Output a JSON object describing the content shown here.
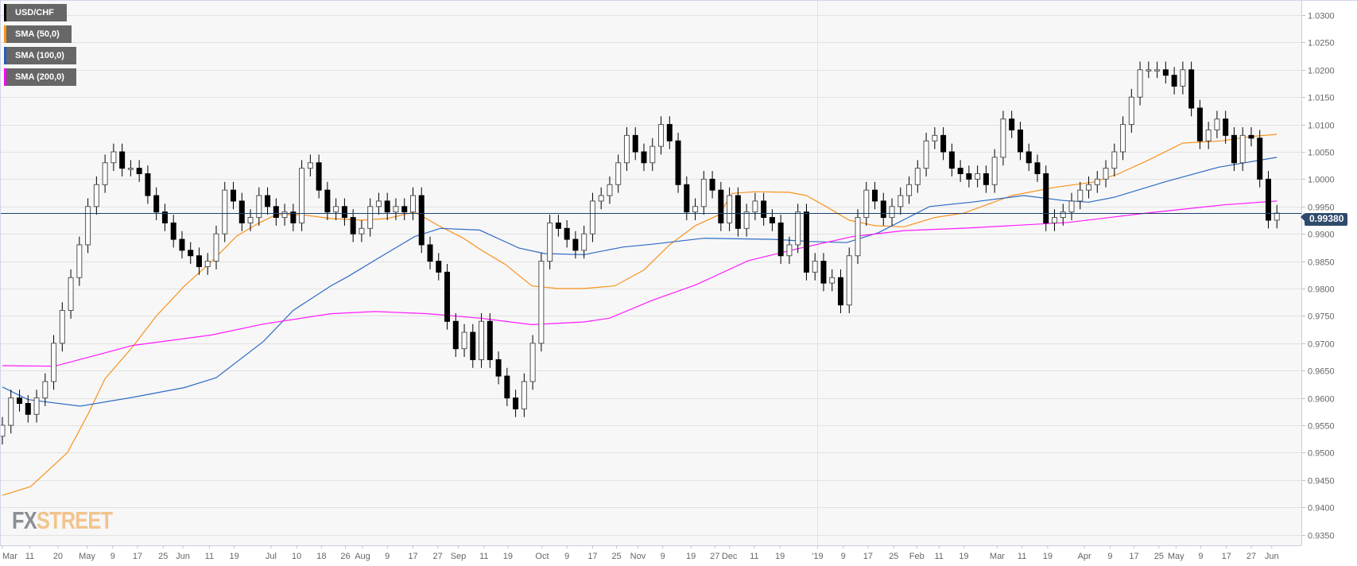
{
  "chart_data": {
    "type": "candlestick",
    "title": "USD/CHF",
    "symbol": "USD/CHF",
    "current_price": "0.99380",
    "current_price_value": 0.9938,
    "ylim": [
      0.9325,
      1.0325
    ],
    "y_ticks": [
      "1.0300",
      "1.0250",
      "1.0200",
      "1.0150",
      "1.0100",
      "1.0050",
      "1.0000",
      "0.9950",
      "0.9900",
      "0.9850",
      "0.9800",
      "0.9750",
      "0.9700",
      "0.9650",
      "0.9600",
      "0.9550",
      "0.9500",
      "0.9450",
      "0.9400",
      "0.9350"
    ],
    "x_ticks": [
      {
        "label": "Mar",
        "index": 0
      },
      {
        "label": "11",
        "index": 3.2
      },
      {
        "label": "20",
        "index": 6.5
      },
      {
        "label": "May",
        "index": 9.9
      },
      {
        "label": "9",
        "index": 12.9
      },
      {
        "label": "17",
        "index": 15.8
      },
      {
        "label": "25",
        "index": 18.8
      },
      {
        "label": "Jun",
        "index": 21.1
      },
      {
        "label": "11",
        "index": 24.2
      },
      {
        "label": "19",
        "index": 27.1
      },
      {
        "label": "Jul",
        "index": 31.4
      },
      {
        "label": "10",
        "index": 34.4
      },
      {
        "label": "18",
        "index": 37.3
      },
      {
        "label": "26",
        "index": 40.1
      },
      {
        "label": "Aug",
        "index": 42.1
      },
      {
        "label": "9",
        "index": 45
      },
      {
        "label": "17",
        "index": 48
      },
      {
        "label": "27",
        "index": 50.9
      },
      {
        "label": "Sep",
        "index": 53.3
      },
      {
        "label": "11",
        "index": 56.3
      },
      {
        "label": "19",
        "index": 59.1
      },
      {
        "label": "Oct",
        "index": 63.1
      },
      {
        "label": "9",
        "index": 66
      },
      {
        "label": "17",
        "index": 69
      },
      {
        "label": "25",
        "index": 71.8
      },
      {
        "label": "Nov",
        "index": 74.3
      },
      {
        "label": "9",
        "index": 77.2
      },
      {
        "label": "19",
        "index": 80.5
      },
      {
        "label": "27",
        "index": 83.3
      },
      {
        "label": "Dec",
        "index": 85
      },
      {
        "label": "11",
        "index": 87.9
      },
      {
        "label": "19",
        "index": 90.9
      },
      {
        "label": "'19",
        "index": 95.3
      },
      {
        "label": "9",
        "index": 98.3
      },
      {
        "label": "17",
        "index": 101.2
      },
      {
        "label": "25",
        "index": 104.2
      },
      {
        "label": "Feb",
        "index": 106.9
      },
      {
        "label": "11",
        "index": 109.5
      },
      {
        "label": "19",
        "index": 112.4
      },
      {
        "label": "Mar",
        "index": 116.3
      },
      {
        "label": "11",
        "index": 119.2
      },
      {
        "label": "19",
        "index": 122.2
      },
      {
        "label": "Apr",
        "index": 126.5
      },
      {
        "label": "9",
        "index": 129.5
      },
      {
        "label": "17",
        "index": 132.3
      },
      {
        "label": "25",
        "index": 135.2
      },
      {
        "label": "May",
        "index": 137.2
      },
      {
        "label": "9",
        "index": 140.1
      },
      {
        "label": "17",
        "index": 143.1
      },
      {
        "label": "27",
        "index": 146
      },
      {
        "label": "Jun",
        "index": 148.4
      }
    ],
    "year_divider_index": 95.3,
    "first_open": 0.953,
    "wick": 0.0015,
    "closes": [
      0.955,
      0.96,
      0.959,
      0.957,
      0.96,
      0.963,
      0.97,
      0.976,
      0.982,
      0.988,
      0.995,
      0.999,
      1.003,
      1.005,
      1.002,
      1.002,
      1.001,
      0.997,
      0.994,
      0.992,
      0.989,
      0.987,
      0.986,
      0.984,
      0.985,
      0.99,
      0.998,
      0.996,
      0.992,
      0.993,
      0.997,
      0.995,
      0.993,
      0.994,
      0.992,
      1.002,
      1.003,
      0.998,
      0.994,
      0.995,
      0.993,
      0.99,
      0.991,
      0.995,
      0.996,
      0.994,
      0.995,
      0.994,
      0.997,
      0.988,
      0.985,
      0.983,
      0.974,
      0.969,
      0.972,
      0.967,
      0.974,
      0.967,
      0.964,
      0.96,
      0.958,
      0.963,
      0.97,
      0.985,
      0.992,
      0.991,
      0.989,
      0.987,
      0.99,
      0.996,
      0.997,
      0.999,
      1.003,
      1.008,
      1.005,
      1.003,
      1.006,
      1.01,
      1.007,
      0.999,
      0.994,
      0.995,
      1.0,
      0.998,
      0.992,
      0.997,
      0.991,
      0.994,
      0.996,
      0.993,
      0.992,
      0.986,
      0.988,
      0.994,
      0.983,
      0.985,
      0.981,
      0.982,
      0.977,
      0.986,
      0.993,
      0.998,
      0.996,
      0.993,
      0.995,
      0.997,
      0.999,
      1.002,
      1.007,
      1.008,
      1.005,
      1.002,
      1.001,
      1.0,
      1.001,
      0.999,
      1.004,
      1.011,
      1.009,
      1.005,
      1.003,
      1.001,
      0.992,
      0.993,
      0.994,
      0.996,
      0.998,
      0.999,
      1.0,
      1.002,
      1.005,
      1.01,
      1.015,
      1.02,
      1.02,
      1.02,
      1.019,
      1.017,
      1.02,
      1.013,
      1.007,
      1.009,
      1.011,
      1.008,
      1.003,
      1.008,
      1.0075,
      1.0,
      0.9925,
      0.9938
    ],
    "series": [
      {
        "name": "SMA (50,0)",
        "color": "#f7931e",
        "points": [
          [
            0,
            0.9422
          ],
          [
            3.3,
            0.9438
          ],
          [
            7.6,
            0.95
          ],
          [
            10,
            0.957
          ],
          [
            12,
            0.9635
          ],
          [
            15.2,
            0.9693
          ],
          [
            18,
            0.975
          ],
          [
            21.3,
            0.9805
          ],
          [
            24.5,
            0.985
          ],
          [
            27.4,
            0.9896
          ],
          [
            30,
            0.992
          ],
          [
            32,
            0.9935
          ],
          [
            35,
            0.9935
          ],
          [
            38.4,
            0.9928
          ],
          [
            42,
            0.9925
          ],
          [
            45,
            0.9928
          ],
          [
            48.2,
            0.994
          ],
          [
            51,
            0.9915
          ],
          [
            53.9,
            0.9892
          ],
          [
            56,
            0.987
          ],
          [
            58.8,
            0.9844
          ],
          [
            61.9,
            0.9805
          ],
          [
            65,
            0.98
          ],
          [
            67.9,
            0.98
          ],
          [
            71.6,
            0.9805
          ],
          [
            75,
            0.9834
          ],
          [
            78,
            0.988
          ],
          [
            81,
            0.9915
          ],
          [
            83.8,
            0.9935
          ],
          [
            85.3,
            0.9974
          ],
          [
            88,
            0.9977
          ],
          [
            92,
            0.9976
          ],
          [
            94,
            0.997
          ],
          [
            96.3,
            0.995
          ],
          [
            99,
            0.9925
          ],
          [
            102,
            0.9915
          ],
          [
            105.4,
            0.9913
          ],
          [
            109,
            0.993
          ],
          [
            112.4,
            0.9938
          ],
          [
            118,
            0.997
          ],
          [
            123,
            0.9985
          ],
          [
            127.7,
            0.9995
          ],
          [
            130.5,
            1.001
          ],
          [
            134,
            1.0035
          ],
          [
            138,
            1.0066
          ],
          [
            142.6,
            1.007
          ],
          [
            146,
            1.0078
          ],
          [
            149,
            1.0082
          ]
        ]
      },
      {
        "name": "SMA (100,0)",
        "color": "#2d6bc4",
        "points": [
          [
            0,
            0.962
          ],
          [
            3,
            0.9597
          ],
          [
            9.1,
            0.9585
          ],
          [
            15.2,
            0.9601
          ],
          [
            21.3,
            0.9619
          ],
          [
            25,
            0.9637
          ],
          [
            30.5,
            0.9703
          ],
          [
            34,
            0.976
          ],
          [
            38.4,
            0.9805
          ],
          [
            40.5,
            0.9823
          ],
          [
            44.2,
            0.9858
          ],
          [
            48.2,
            0.9895
          ],
          [
            51.2,
            0.991
          ],
          [
            55.8,
            0.9907
          ],
          [
            60.4,
            0.9874
          ],
          [
            63.4,
            0.9864
          ],
          [
            68,
            0.9862
          ],
          [
            72.6,
            0.9876
          ],
          [
            75.9,
            0.9881
          ],
          [
            82,
            0.9892
          ],
          [
            90.2,
            0.989
          ],
          [
            94.5,
            0.9886
          ],
          [
            98.7,
            0.9884
          ],
          [
            102.4,
            0.9902
          ],
          [
            108.4,
            0.995
          ],
          [
            113.3,
            0.9958
          ],
          [
            119.4,
            0.997
          ],
          [
            124,
            0.9961
          ],
          [
            127,
            0.9958
          ],
          [
            130,
            0.9967
          ],
          [
            136.1,
            0.9996
          ],
          [
            142.2,
            1.0022
          ],
          [
            149,
            1.004
          ]
        ]
      },
      {
        "name": "SMA (200,0)",
        "color": "#ff1aff",
        "points": [
          [
            0,
            0.9659
          ],
          [
            6.1,
            0.9658
          ],
          [
            10.7,
            0.9677
          ],
          [
            15.2,
            0.9696
          ],
          [
            24.4,
            0.9715
          ],
          [
            30.5,
            0.9735
          ],
          [
            38.4,
            0.9754
          ],
          [
            43.6,
            0.9758
          ],
          [
            49.7,
            0.9754
          ],
          [
            55.8,
            0.9746
          ],
          [
            61.9,
            0.9734
          ],
          [
            68,
            0.9739
          ],
          [
            71,
            0.9746
          ],
          [
            75.9,
            0.9778
          ],
          [
            81.1,
            0.9807
          ],
          [
            87.2,
            0.9851
          ],
          [
            93.3,
            0.9874
          ],
          [
            99.4,
            0.9895
          ],
          [
            105.4,
            0.9906
          ],
          [
            113.3,
            0.9911
          ],
          [
            124.6,
            0.9921
          ],
          [
            133.7,
            0.9938
          ],
          [
            142.8,
            0.9953
          ],
          [
            149,
            0.996
          ]
        ]
      }
    ],
    "legend": [
      {
        "label": "USD/CHF",
        "color": "#000000"
      },
      {
        "label": "SMA (50,0)",
        "color": "#f7931e"
      },
      {
        "label": "SMA (100,0)",
        "color": "#1f5fbf"
      },
      {
        "label": "SMA (200,0)",
        "color": "#ff00ff"
      }
    ],
    "legend_position": "top-left",
    "grid": true
  },
  "branding": {
    "logo_fx": "FX",
    "logo_street": "STREET"
  },
  "colors": {
    "background": "#f7f7f7",
    "price_line": "#1f3f6e",
    "bull": "#ffffff",
    "bear": "#000000"
  }
}
